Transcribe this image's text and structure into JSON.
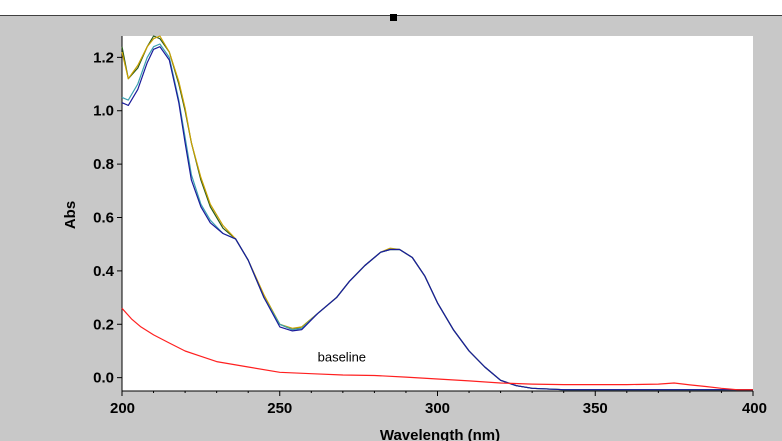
{
  "chart_data": {
    "type": "line",
    "xlabel": "Wavelength (nm)",
    "ylabel": "Abs",
    "xlim": [
      200,
      400
    ],
    "ylim": [
      -0.05,
      1.28
    ],
    "xticks": [
      "200",
      "250",
      "300",
      "350",
      "400"
    ],
    "yticks": [
      "0.0",
      "0.2",
      "0.4",
      "0.6",
      "0.8",
      "1.0",
      "1.2"
    ],
    "annotations": [
      {
        "text": "baseline",
        "x": 262,
        "y": 0.06
      }
    ],
    "grid": false,
    "series": [
      {
        "color": "#2a5a1a",
        "points": [
          [
            200,
            1.24
          ],
          [
            202,
            1.12
          ],
          [
            205,
            1.16
          ],
          [
            208,
            1.24
          ],
          [
            210,
            1.28
          ],
          [
            212,
            1.27
          ],
          [
            215,
            1.22
          ],
          [
            218,
            1.1
          ],
          [
            220,
            1.0
          ],
          [
            222,
            0.88
          ],
          [
            225,
            0.74
          ],
          [
            228,
            0.64
          ],
          [
            232,
            0.56
          ],
          [
            236,
            0.52
          ],
          [
            240,
            0.44
          ],
          [
            245,
            0.3
          ],
          [
            250,
            0.2
          ],
          [
            254,
            0.18
          ],
          [
            257,
            0.19
          ],
          [
            262,
            0.24
          ],
          [
            268,
            0.3
          ],
          [
            272,
            0.36
          ],
          [
            277,
            0.42
          ],
          [
            282,
            0.47
          ],
          [
            285,
            0.48
          ],
          [
            288,
            0.48
          ],
          [
            292,
            0.45
          ],
          [
            296,
            0.38
          ],
          [
            300,
            0.28
          ],
          [
            305,
            0.18
          ],
          [
            310,
            0.1
          ],
          [
            315,
            0.04
          ],
          [
            320,
            -0.01
          ],
          [
            325,
            -0.03
          ],
          [
            330,
            -0.04
          ],
          [
            340,
            -0.045
          ],
          [
            360,
            -0.045
          ],
          [
            380,
            -0.045
          ],
          [
            400,
            -0.045
          ]
        ]
      },
      {
        "color": "#c8a000",
        "points": [
          [
            200,
            1.22
          ],
          [
            202,
            1.12
          ],
          [
            205,
            1.17
          ],
          [
            208,
            1.24
          ],
          [
            210,
            1.27
          ],
          [
            212,
            1.28
          ],
          [
            215,
            1.22
          ],
          [
            218,
            1.11
          ],
          [
            220,
            1.01
          ],
          [
            222,
            0.88
          ],
          [
            225,
            0.75
          ],
          [
            228,
            0.65
          ],
          [
            232,
            0.57
          ],
          [
            236,
            0.52
          ],
          [
            240,
            0.44
          ],
          [
            245,
            0.31
          ],
          [
            250,
            0.2
          ],
          [
            254,
            0.185
          ],
          [
            257,
            0.19
          ],
          [
            262,
            0.24
          ],
          [
            268,
            0.3
          ],
          [
            272,
            0.36
          ],
          [
            277,
            0.42
          ],
          [
            282,
            0.47
          ],
          [
            285,
            0.485
          ],
          [
            288,
            0.48
          ],
          [
            292,
            0.45
          ],
          [
            296,
            0.38
          ],
          [
            300,
            0.28
          ],
          [
            305,
            0.18
          ],
          [
            310,
            0.1
          ],
          [
            315,
            0.04
          ],
          [
            320,
            -0.01
          ],
          [
            325,
            -0.03
          ],
          [
            330,
            -0.04
          ],
          [
            340,
            -0.045
          ],
          [
            360,
            -0.045
          ],
          [
            380,
            -0.045
          ],
          [
            400,
            -0.045
          ]
        ]
      },
      {
        "color": "#3aa0b0",
        "points": [
          [
            200,
            1.05
          ],
          [
            202,
            1.04
          ],
          [
            205,
            1.1
          ],
          [
            208,
            1.2
          ],
          [
            210,
            1.24
          ],
          [
            212,
            1.25
          ],
          [
            215,
            1.2
          ],
          [
            218,
            1.04
          ],
          [
            220,
            0.9
          ],
          [
            222,
            0.76
          ],
          [
            225,
            0.65
          ],
          [
            228,
            0.59
          ],
          [
            232,
            0.54
          ],
          [
            236,
            0.52
          ],
          [
            240,
            0.44
          ],
          [
            245,
            0.3
          ],
          [
            250,
            0.2
          ],
          [
            254,
            0.18
          ],
          [
            257,
            0.185
          ],
          [
            262,
            0.24
          ],
          [
            268,
            0.3
          ],
          [
            272,
            0.36
          ],
          [
            277,
            0.42
          ],
          [
            282,
            0.47
          ],
          [
            285,
            0.48
          ],
          [
            288,
            0.48
          ],
          [
            292,
            0.45
          ],
          [
            296,
            0.38
          ],
          [
            300,
            0.28
          ],
          [
            305,
            0.18
          ],
          [
            310,
            0.1
          ],
          [
            315,
            0.04
          ],
          [
            320,
            -0.01
          ],
          [
            325,
            -0.03
          ],
          [
            330,
            -0.04
          ],
          [
            340,
            -0.045
          ],
          [
            360,
            -0.045
          ],
          [
            380,
            -0.045
          ],
          [
            400,
            -0.045
          ]
        ]
      },
      {
        "color": "#1a1a9a",
        "points": [
          [
            200,
            1.03
          ],
          [
            202,
            1.02
          ],
          [
            205,
            1.08
          ],
          [
            208,
            1.18
          ],
          [
            210,
            1.23
          ],
          [
            212,
            1.24
          ],
          [
            215,
            1.19
          ],
          [
            218,
            1.03
          ],
          [
            220,
            0.88
          ],
          [
            222,
            0.74
          ],
          [
            225,
            0.64
          ],
          [
            228,
            0.58
          ],
          [
            232,
            0.54
          ],
          [
            236,
            0.52
          ],
          [
            240,
            0.44
          ],
          [
            245,
            0.3
          ],
          [
            250,
            0.19
          ],
          [
            254,
            0.175
          ],
          [
            257,
            0.18
          ],
          [
            262,
            0.24
          ],
          [
            268,
            0.3
          ],
          [
            272,
            0.36
          ],
          [
            277,
            0.42
          ],
          [
            282,
            0.47
          ],
          [
            285,
            0.48
          ],
          [
            288,
            0.48
          ],
          [
            292,
            0.45
          ],
          [
            296,
            0.38
          ],
          [
            300,
            0.28
          ],
          [
            305,
            0.18
          ],
          [
            310,
            0.1
          ],
          [
            315,
            0.04
          ],
          [
            320,
            -0.01
          ],
          [
            325,
            -0.03
          ],
          [
            330,
            -0.04
          ],
          [
            340,
            -0.045
          ],
          [
            360,
            -0.045
          ],
          [
            380,
            -0.045
          ],
          [
            400,
            -0.045
          ]
        ]
      },
      {
        "color": "#ff2020",
        "points": [
          [
            200,
            0.26
          ],
          [
            203,
            0.22
          ],
          [
            206,
            0.19
          ],
          [
            210,
            0.16
          ],
          [
            215,
            0.13
          ],
          [
            220,
            0.1
          ],
          [
            225,
            0.08
          ],
          [
            230,
            0.06
          ],
          [
            240,
            0.04
          ],
          [
            250,
            0.02
          ],
          [
            260,
            0.015
          ],
          [
            270,
            0.01
          ],
          [
            280,
            0.008
          ],
          [
            290,
            0.002
          ],
          [
            300,
            -0.005
          ],
          [
            310,
            -0.012
          ],
          [
            320,
            -0.02
          ],
          [
            330,
            -0.024
          ],
          [
            340,
            -0.026
          ],
          [
            350,
            -0.026
          ],
          [
            360,
            -0.026
          ],
          [
            370,
            -0.024
          ],
          [
            375,
            -0.02
          ],
          [
            380,
            -0.027
          ],
          [
            385,
            -0.033
          ],
          [
            390,
            -0.04
          ],
          [
            395,
            -0.045
          ],
          [
            400,
            -0.045
          ]
        ]
      }
    ]
  }
}
